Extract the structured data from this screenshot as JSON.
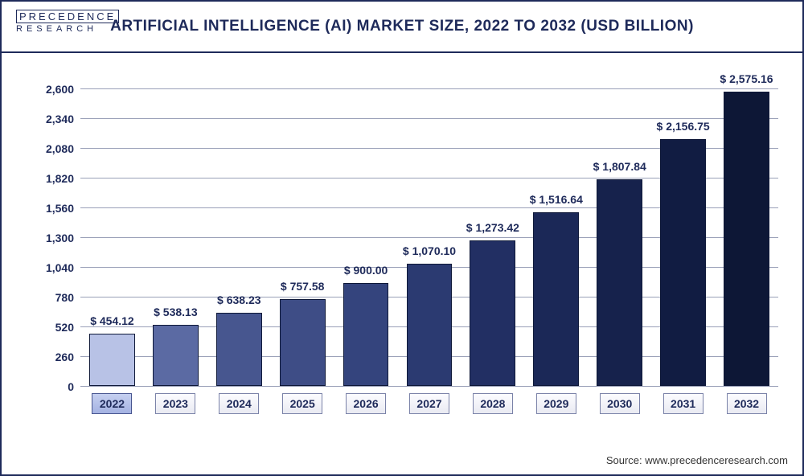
{
  "logo": {
    "top": "PRECEDENCE",
    "bottom": "RESEARCH"
  },
  "title": "ARTIFICIAL INTELLIGENCE (AI) MARKET SIZE, 2022 TO 2032 (USD BILLION)",
  "source": "Source: www.precedenceresearch.com",
  "chart": {
    "type": "bar",
    "ylim": [
      0,
      2730
    ],
    "yticks": [
      0,
      260,
      520,
      780,
      1040,
      1300,
      1560,
      1820,
      2080,
      2340,
      2600
    ],
    "ytick_labels": [
      "0",
      "260",
      "520",
      "780",
      "1,040",
      "1,300",
      "1,560",
      "1,820",
      "2,080",
      "2,340",
      "2,600"
    ],
    "grid_color": "#9aa0b8",
    "background_color": "#ffffff",
    "bar_border_color": "#0e1838",
    "bar_width": 0.72,
    "label_fontsize": 14,
    "title_fontsize": 19,
    "title_color": "#1e2a5a",
    "tick_color": "#1e2a5a",
    "categories": [
      "2022",
      "2023",
      "2024",
      "2025",
      "2026",
      "2027",
      "2028",
      "2029",
      "2030",
      "2031",
      "2032"
    ],
    "highlight_category": "2022",
    "values": [
      454.12,
      538.13,
      638.23,
      757.58,
      900.0,
      1070.1,
      1273.42,
      1516.64,
      1807.84,
      2156.75,
      2575.16
    ],
    "value_labels": [
      "$ 454.12",
      "$ 538.13",
      "$ 638.23",
      "$ 757.58",
      "$ 900.00",
      "$ 1,070.10",
      "$ 1,273.42",
      "$ 1,516.64",
      "$ 1,807.84",
      "$ 2,156.75",
      "$ 2,575.16"
    ],
    "bar_colors": [
      "#b8c2e6",
      "#5b6aa3",
      "#47568f",
      "#3e4d86",
      "#34447d",
      "#2b3a71",
      "#222f63",
      "#1b2857",
      "#16224c",
      "#111c42",
      "#0d1736"
    ],
    "x_box_bg": "linear-gradient(#fcfcff,#e9eaf2)",
    "x_box_highlight_bg": "linear-gradient(#c6d0f0,#a4b2e2)"
  }
}
